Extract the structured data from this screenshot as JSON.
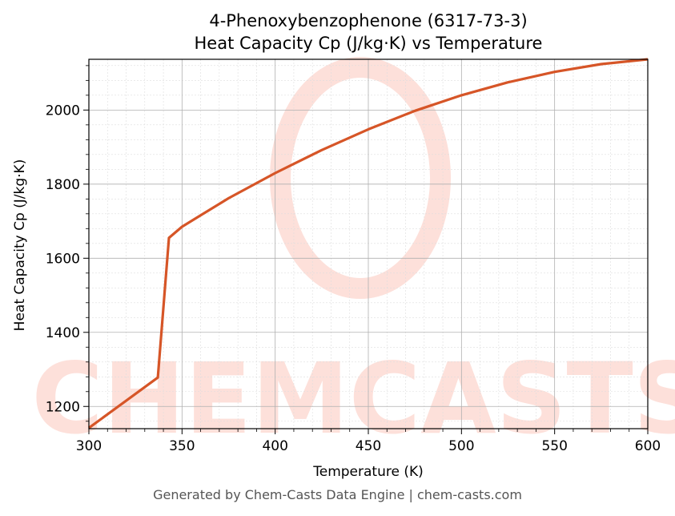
{
  "title_line1": "4-Phenoxybenzophenone (6317-73-3)",
  "title_line2": "Heat Capacity Cp (J/kg·K) vs Temperature",
  "footer": "Generated by Chem-Casts Data Engine | chem-casts.com",
  "watermark": "CHEMCASTS",
  "colors": {
    "line": "#d65527",
    "watermark": "#fde0da",
    "grid_major": "#b0b0b0",
    "grid_minor": "#dddddd"
  },
  "chart_data": {
    "type": "line",
    "xlabel": "Temperature (K)",
    "ylabel": "Heat Capacity Cp (J/kg·K)",
    "xlim": [
      300,
      600
    ],
    "ylim": [
      1140,
      2137
    ],
    "xticks": [
      300,
      350,
      400,
      450,
      500,
      550,
      600
    ],
    "yticks": [
      1200,
      1400,
      1600,
      1800,
      2000
    ],
    "grid": true,
    "series": [
      {
        "x": [
          300,
          337,
          343,
          350,
          375,
          400,
          425,
          450,
          475,
          500,
          525,
          550,
          575,
          600
        ],
        "y": [
          1142,
          1278,
          1655,
          1685,
          1762,
          1830,
          1892,
          1948,
          1998,
          2040,
          2075,
          2103,
          2124,
          2137
        ]
      }
    ]
  }
}
